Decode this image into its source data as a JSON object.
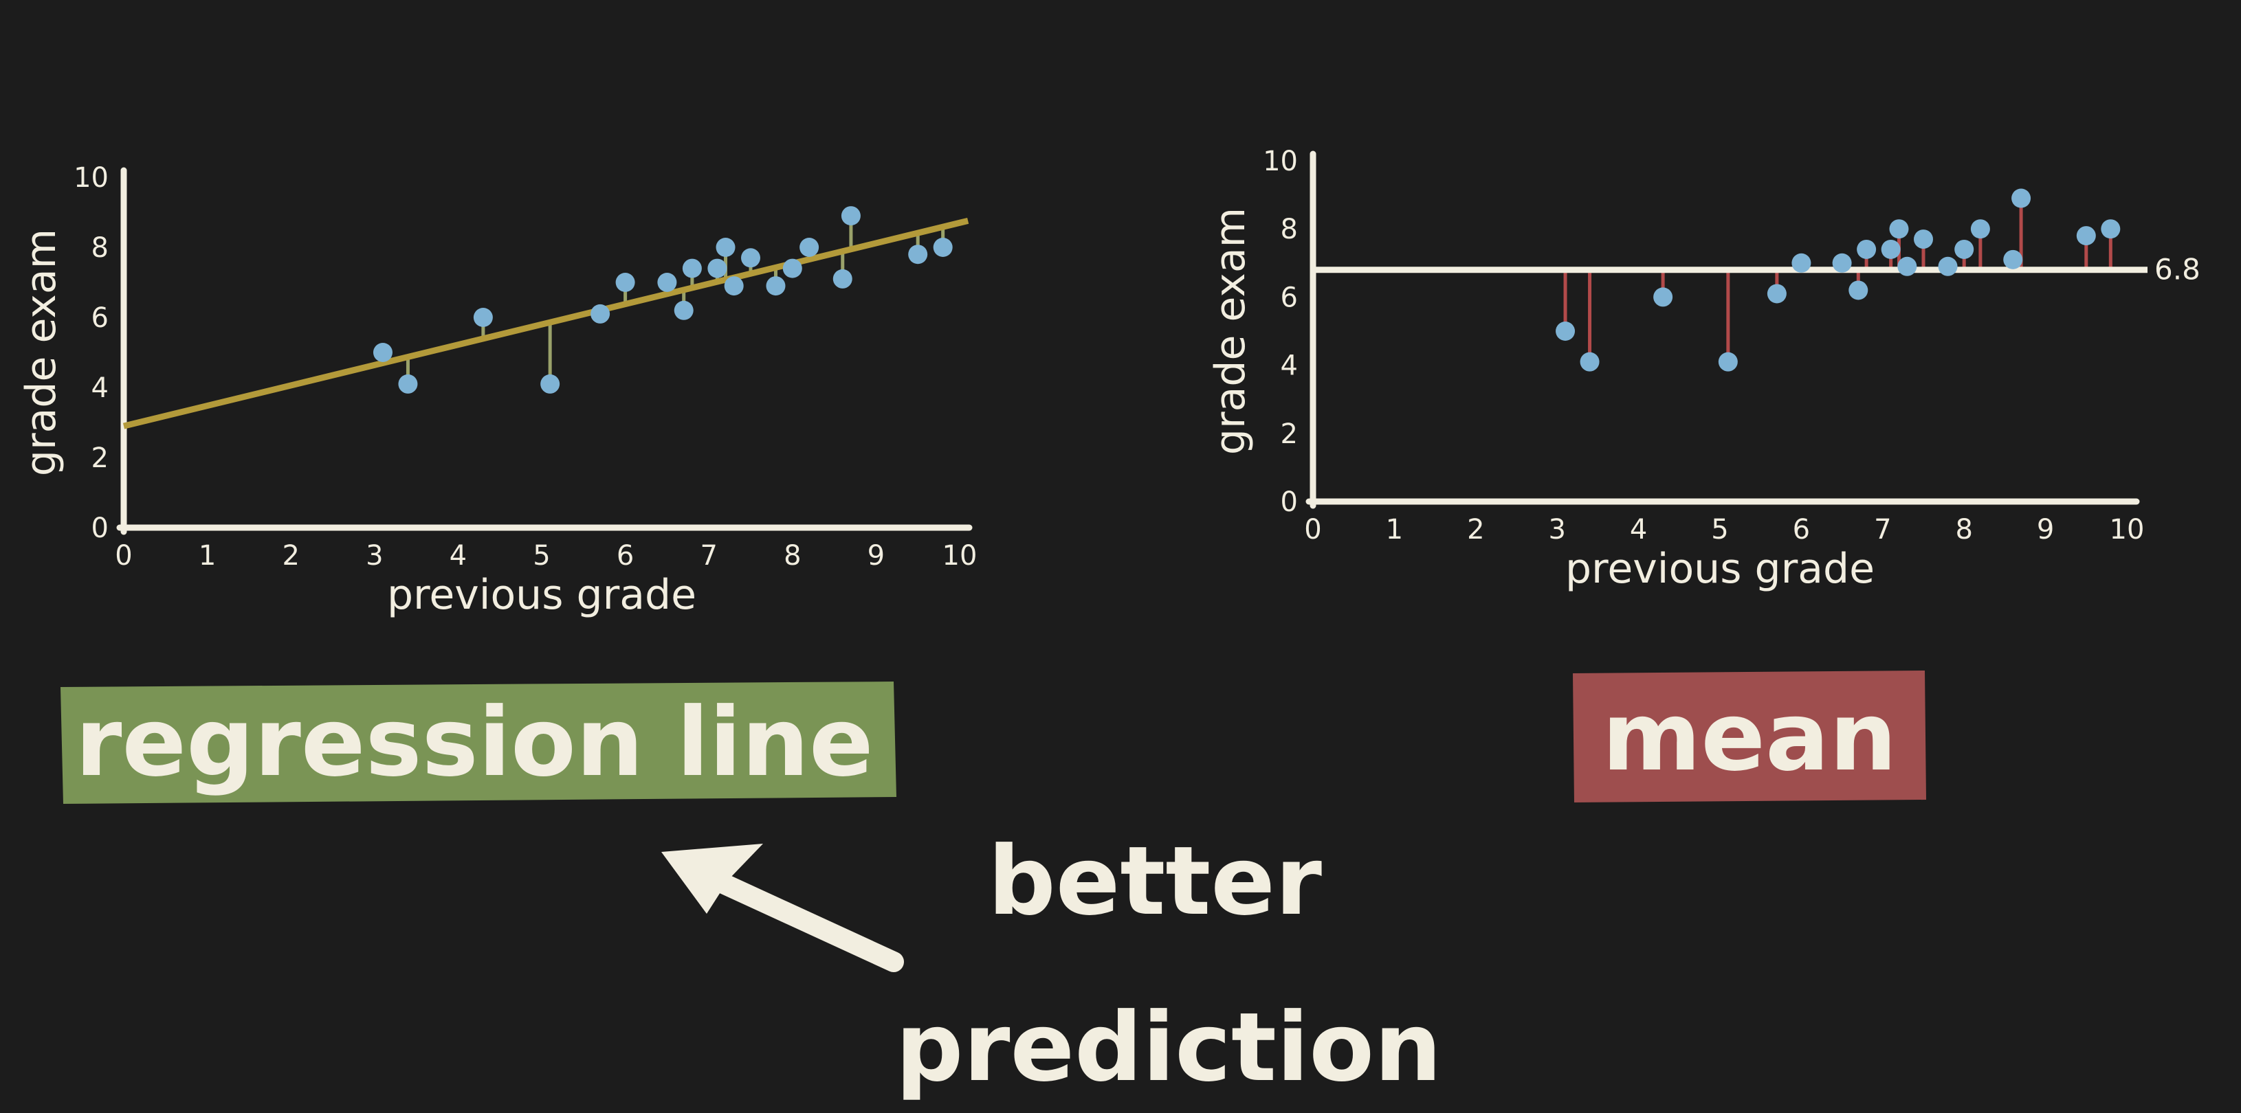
{
  "colors": {
    "background": "#1c1c1c",
    "chalk": "#f2eee0",
    "point": "#7fb3d5",
    "regression_line": "#b39a3a",
    "regression_residual": "#9aa26a",
    "mean_residual": "#b24a4a",
    "regression_label_bg": "#7a9455",
    "mean_label_bg": "#9e4e4e"
  },
  "chart_data": [
    {
      "type": "scatter",
      "title": "",
      "xlabel": "previous grade",
      "ylabel": "grade exam",
      "xlim": [
        0,
        10
      ],
      "ylim": [
        0,
        10
      ],
      "xticks": [
        "0",
        "1",
        "2",
        "3",
        "4",
        "5",
        "6",
        "7",
        "8",
        "9",
        "10"
      ],
      "yticks": [
        "0",
        "2",
        "4",
        "6",
        "8",
        "10"
      ],
      "fit": {
        "kind": "regression line",
        "intercept": 2.9,
        "slope": 0.58
      },
      "points": [
        {
          "x": 3.1,
          "y": 5.0
        },
        {
          "x": 3.4,
          "y": 4.1
        },
        {
          "x": 4.3,
          "y": 6.0
        },
        {
          "x": 5.1,
          "y": 4.1
        },
        {
          "x": 5.7,
          "y": 6.1
        },
        {
          "x": 6.0,
          "y": 7.0
        },
        {
          "x": 6.5,
          "y": 7.0
        },
        {
          "x": 6.7,
          "y": 6.2
        },
        {
          "x": 6.8,
          "y": 7.4
        },
        {
          "x": 7.1,
          "y": 7.4
        },
        {
          "x": 7.2,
          "y": 8.0
        },
        {
          "x": 7.3,
          "y": 6.9
        },
        {
          "x": 7.5,
          "y": 7.7
        },
        {
          "x": 7.8,
          "y": 6.9
        },
        {
          "x": 8.0,
          "y": 7.4
        },
        {
          "x": 8.2,
          "y": 8.0
        },
        {
          "x": 8.6,
          "y": 7.1
        },
        {
          "x": 8.7,
          "y": 8.9
        },
        {
          "x": 9.5,
          "y": 7.8
        },
        {
          "x": 9.8,
          "y": 8.0
        }
      ]
    },
    {
      "type": "scatter",
      "title": "",
      "xlabel": "previous grade",
      "ylabel": "grade exam",
      "xlim": [
        0,
        10
      ],
      "ylim": [
        0,
        10
      ],
      "xticks": [
        "0",
        "1",
        "2",
        "3",
        "4",
        "5",
        "6",
        "7",
        "8",
        "9",
        "10"
      ],
      "yticks": [
        "0",
        "2",
        "4",
        "6",
        "8",
        "10"
      ],
      "fit": {
        "kind": "mean",
        "value": 6.8,
        "label": "6.8"
      },
      "points": [
        {
          "x": 3.1,
          "y": 5.0
        },
        {
          "x": 3.4,
          "y": 4.1
        },
        {
          "x": 4.3,
          "y": 6.0
        },
        {
          "x": 5.1,
          "y": 4.1
        },
        {
          "x": 5.7,
          "y": 6.1
        },
        {
          "x": 6.0,
          "y": 7.0
        },
        {
          "x": 6.5,
          "y": 7.0
        },
        {
          "x": 6.7,
          "y": 6.2
        },
        {
          "x": 6.8,
          "y": 7.4
        },
        {
          "x": 7.1,
          "y": 7.4
        },
        {
          "x": 7.2,
          "y": 8.0
        },
        {
          "x": 7.3,
          "y": 6.9
        },
        {
          "x": 7.5,
          "y": 7.7
        },
        {
          "x": 7.8,
          "y": 6.9
        },
        {
          "x": 8.0,
          "y": 7.4
        },
        {
          "x": 8.2,
          "y": 8.0
        },
        {
          "x": 8.6,
          "y": 7.1
        },
        {
          "x": 8.7,
          "y": 8.9
        },
        {
          "x": 9.5,
          "y": 7.8
        },
        {
          "x": 9.8,
          "y": 8.0
        }
      ]
    }
  ],
  "labels": {
    "regression": "regression line",
    "mean": "mean",
    "better": "better",
    "prediction": "prediction"
  }
}
